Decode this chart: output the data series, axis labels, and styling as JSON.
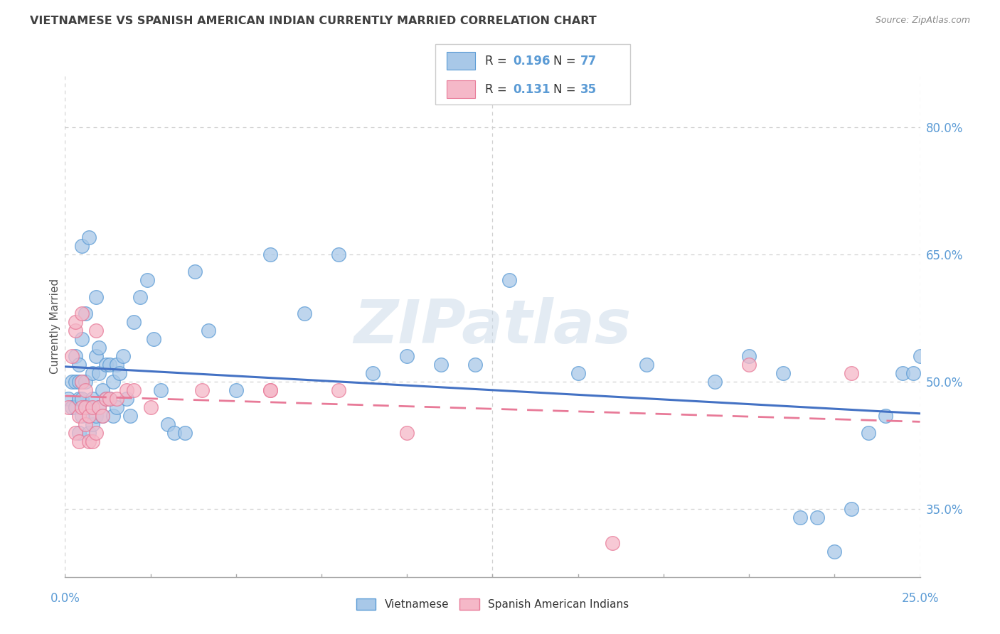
{
  "title": "VIETNAMESE VS SPANISH AMERICAN INDIAN CURRENTLY MARRIED CORRELATION CHART",
  "source": "Source: ZipAtlas.com",
  "ylabel": "Currently Married",
  "right_yticks": [
    "80.0%",
    "65.0%",
    "50.0%",
    "35.0%"
  ],
  "right_ytick_vals": [
    0.8,
    0.65,
    0.5,
    0.35
  ],
  "watermark": "ZIPatlas",
  "r_blue": "0.196",
  "n_blue": "77",
  "r_pink": "0.131",
  "n_pink": "35",
  "legend_label_blue": "Vietnamese",
  "legend_label_pink": "Spanish American Indians",
  "blue_fill": "#a8c8e8",
  "pink_fill": "#f5b8c8",
  "blue_edge": "#5b9bd5",
  "pink_edge": "#e87a98",
  "blue_line": "#4472c4",
  "pink_line": "#e87a98",
  "title_color": "#404040",
  "axis_label_color": "#5b9bd5",
  "r_text_color": "#5b9bd5",
  "n_text_color": "#5b9bd5",
  "grid_color": "#d0d0d0",
  "xlim": [
    0.0,
    0.25
  ],
  "ylim": [
    0.27,
    0.86
  ],
  "blue_x": [
    0.001,
    0.002,
    0.002,
    0.003,
    0.003,
    0.003,
    0.004,
    0.004,
    0.004,
    0.004,
    0.005,
    0.005,
    0.005,
    0.005,
    0.005,
    0.006,
    0.006,
    0.006,
    0.007,
    0.007,
    0.007,
    0.008,
    0.008,
    0.008,
    0.009,
    0.009,
    0.009,
    0.01,
    0.01,
    0.01,
    0.011,
    0.011,
    0.012,
    0.012,
    0.013,
    0.013,
    0.014,
    0.014,
    0.015,
    0.015,
    0.016,
    0.017,
    0.018,
    0.019,
    0.02,
    0.022,
    0.024,
    0.026,
    0.028,
    0.03,
    0.032,
    0.035,
    0.038,
    0.042,
    0.05,
    0.06,
    0.07,
    0.08,
    0.09,
    0.1,
    0.11,
    0.12,
    0.13,
    0.15,
    0.17,
    0.19,
    0.2,
    0.21,
    0.215,
    0.22,
    0.225,
    0.23,
    0.235,
    0.24,
    0.245,
    0.248,
    0.25
  ],
  "blue_y": [
    0.48,
    0.47,
    0.5,
    0.47,
    0.5,
    0.53,
    0.44,
    0.48,
    0.5,
    0.52,
    0.46,
    0.48,
    0.5,
    0.55,
    0.66,
    0.47,
    0.5,
    0.58,
    0.44,
    0.47,
    0.67,
    0.45,
    0.48,
    0.51,
    0.46,
    0.53,
    0.6,
    0.47,
    0.51,
    0.54,
    0.46,
    0.49,
    0.48,
    0.52,
    0.48,
    0.52,
    0.46,
    0.5,
    0.47,
    0.52,
    0.51,
    0.53,
    0.48,
    0.46,
    0.57,
    0.6,
    0.62,
    0.55,
    0.49,
    0.45,
    0.44,
    0.44,
    0.63,
    0.56,
    0.49,
    0.65,
    0.58,
    0.65,
    0.51,
    0.53,
    0.52,
    0.52,
    0.62,
    0.51,
    0.52,
    0.5,
    0.53,
    0.51,
    0.34,
    0.34,
    0.3,
    0.35,
    0.44,
    0.46,
    0.51,
    0.51,
    0.53
  ],
  "pink_x": [
    0.001,
    0.002,
    0.003,
    0.003,
    0.003,
    0.004,
    0.004,
    0.005,
    0.005,
    0.005,
    0.006,
    0.006,
    0.006,
    0.007,
    0.007,
    0.008,
    0.008,
    0.009,
    0.009,
    0.01,
    0.011,
    0.012,
    0.013,
    0.015,
    0.018,
    0.02,
    0.025,
    0.04,
    0.06,
    0.06,
    0.08,
    0.1,
    0.16,
    0.2,
    0.23
  ],
  "pink_y": [
    0.47,
    0.53,
    0.44,
    0.56,
    0.57,
    0.43,
    0.46,
    0.47,
    0.5,
    0.58,
    0.45,
    0.47,
    0.49,
    0.43,
    0.46,
    0.43,
    0.47,
    0.44,
    0.56,
    0.47,
    0.46,
    0.48,
    0.48,
    0.48,
    0.49,
    0.49,
    0.47,
    0.49,
    0.49,
    0.49,
    0.49,
    0.44,
    0.31,
    0.52,
    0.51
  ]
}
